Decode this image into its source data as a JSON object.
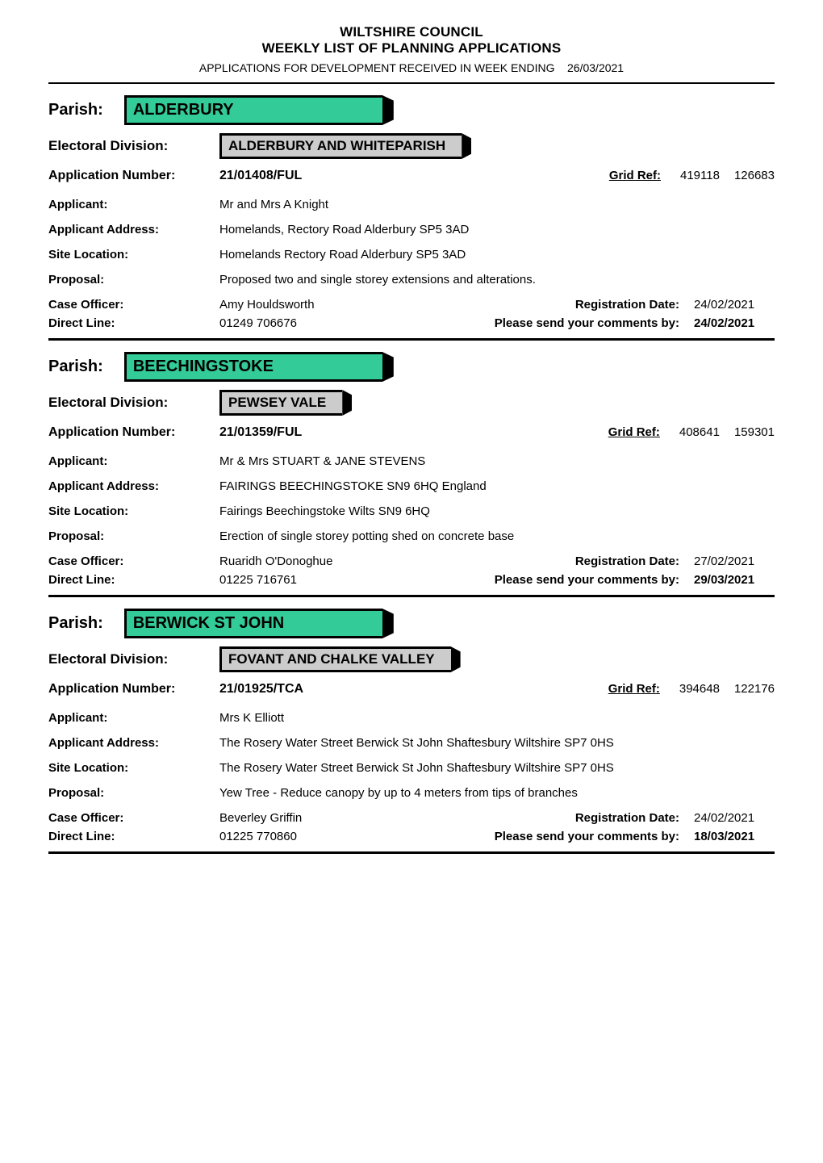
{
  "header": {
    "line1": "WILTSHIRE COUNCIL",
    "line2": "WEEKLY LIST OF PLANNING APPLICATIONS",
    "subtitle_prefix": "APPLICATIONS FOR DEVELOPMENT RECEIVED IN WEEK ENDING",
    "week_ending_date": "26/03/2021"
  },
  "labels": {
    "parish": "Parish:",
    "electoral_division": "Electoral Division:",
    "application_number": "Application Number:",
    "grid_ref": "Grid Ref:",
    "applicant": "Applicant:",
    "applicant_address": "Applicant Address:",
    "site_location": "Site Location:",
    "proposal": "Proposal:",
    "case_officer": "Case Officer:",
    "direct_line": "Direct Line:",
    "registration_date": "Registration Date:",
    "comments_by": "Please send your comments by:"
  },
  "colors": {
    "parish_bg": "#33cc99",
    "elec_bg": "#cccccc",
    "rule": "#000000",
    "text": "#000000",
    "page_bg": "#ffffff"
  },
  "records": [
    {
      "parish": "ALDERBURY",
      "electoral_division": "ALDERBURY AND WHITEPARISH",
      "application_number": "21/01408/FUL",
      "grid_ref_e": "419118",
      "grid_ref_n": "126683",
      "applicant": "Mr and Mrs A Knight",
      "applicant_address": "Homelands, Rectory Road  Alderbury  SP5 3AD",
      "site_location": "Homelands  Rectory Road  Alderbury  SP5 3AD",
      "proposal": "Proposed two and single storey extensions and alterations.",
      "case_officer": "Amy Houldsworth",
      "direct_line": "01249 706676",
      "registration_date": "24/02/2021",
      "comments_by": "24/02/2021"
    },
    {
      "parish": "BEECHINGSTOKE",
      "electoral_division": "PEWSEY VALE",
      "application_number": "21/01359/FUL",
      "grid_ref_e": "408641",
      "grid_ref_n": "159301",
      "applicant": "Mr & Mrs STUART & JANE STEVENS",
      "applicant_address": "FAIRINGS  BEECHINGSTOKE  SN9 6HQ  England",
      "site_location": "Fairings  Beechingstoke  Wilts  SN9 6HQ",
      "proposal": "Erection of single storey potting shed on concrete base",
      "case_officer": "Ruaridh O'Donoghue",
      "direct_line": "01225 716761",
      "registration_date": "27/02/2021",
      "comments_by": "29/03/2021"
    },
    {
      "parish": "BERWICK ST JOHN",
      "electoral_division": "FOVANT AND CHALKE VALLEY",
      "application_number": "21/01925/TCA",
      "grid_ref_e": "394648",
      "grid_ref_n": "122176",
      "applicant": "Mrs K Elliott",
      "applicant_address": "The Rosery  Water Street  Berwick St John  Shaftesbury  Wiltshire  SP7 0HS",
      "site_location": "The Rosery  Water Street  Berwick St John  Shaftesbury  Wiltshire  SP7 0HS",
      "proposal": "Yew Tree - Reduce canopy by up to 4 meters from tips of branches",
      "case_officer": "Beverley Griffin",
      "direct_line": "01225 770860",
      "registration_date": "24/02/2021",
      "comments_by": "18/03/2021"
    }
  ]
}
